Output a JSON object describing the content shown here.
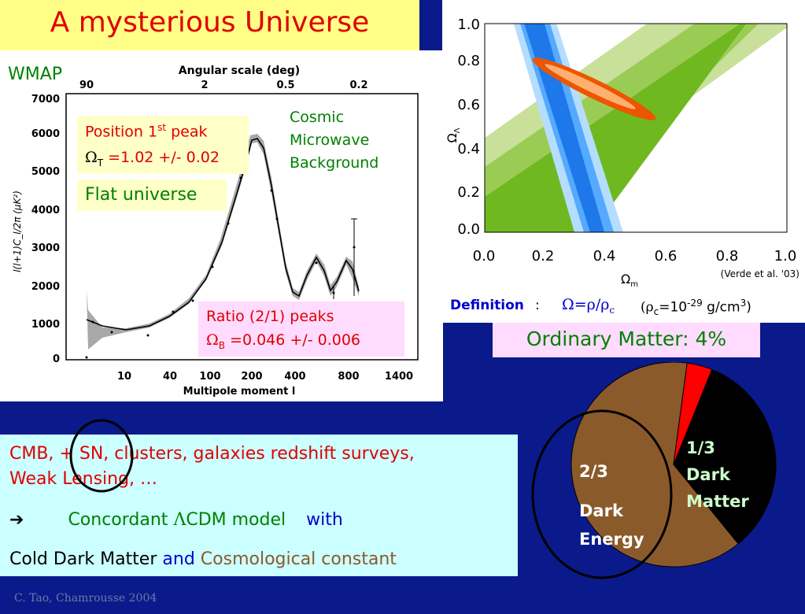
{
  "title": "A mysterious Universe",
  "colors": {
    "background": "#0a1a8a",
    "title_bg": "#ffff88",
    "title_text": "#e00000",
    "dark_energy": "#8b5a2b",
    "dark_matter": "#000000",
    "ordinary_matter": "#ff0000"
  },
  "cmb": {
    "wmap_label": "WMAP",
    "top_axis_label": "Angular scale (deg)",
    "top_ticks": [
      "90",
      "2",
      "0.5",
      "0.2"
    ],
    "y_ticks": [
      "7000",
      "6000",
      "5000",
      "4000",
      "3000",
      "2000",
      "1000",
      "0"
    ],
    "y_label": "l(l+1)C_l/2π (μK²)",
    "x_ticks": [
      "10",
      "40",
      "100",
      "200",
      "400",
      "800",
      "1400"
    ],
    "x_label": "Multipole moment l",
    "peak_box": {
      "line1": "Position 1",
      "sup": "st",
      "line1_end": " peak",
      "omega": "Ω",
      "sub": "T",
      "value": " =1.02 +/- 0.02"
    },
    "flat_label": "Flat universe",
    "cmb_label": [
      "Cosmic",
      "Microwave",
      "Background"
    ],
    "ratio_box": {
      "line1": "Ratio (2/1) peaks",
      "omega": "Ω",
      "sub": "B",
      "value": " =0.046 +/- 0.006"
    }
  },
  "omega_plot": {
    "x_ticks": [
      "0.0",
      "0.2",
      "0.4",
      "0.6",
      "0.8",
      "1.0"
    ],
    "y_ticks": [
      "1.0",
      "0.8",
      "0.6",
      "0.4",
      "0.2",
      "0.0"
    ],
    "x_label": "Ω",
    "x_label_sub": "m",
    "y_label": "Ω",
    "y_label_sub": "Λ",
    "citation": "(Verde et al. '03)"
  },
  "definition": {
    "label": "Definition",
    "colon": ":",
    "formula": "Ω=ρ/ρ",
    "formula_sub": "c",
    "paren_open": "(ρ",
    "rho_sub": "c",
    "value": "=10",
    "exp": "-29",
    "unit": " g/cm",
    "unit_exp": "3",
    "paren_close": ")"
  },
  "ordinary_matter": "Ordinary Matter: 4%",
  "pie": {
    "slices": [
      {
        "name": "Dark Energy",
        "fraction": 0.63
      },
      {
        "name": "Dark Matter",
        "fraction": 0.33
      },
      {
        "name": "Ordinary Matter",
        "fraction": 0.04
      }
    ],
    "dark_energy_label": [
      "2/3",
      "Dark",
      "Energy"
    ],
    "dark_matter_label": [
      "1/3",
      "Dark",
      "Matter"
    ]
  },
  "text_panel": {
    "line1": "CMB, + SN, clusters, galaxies redshift surveys,",
    "line2": "Weak Lensing, …",
    "arrow": "➔",
    "line3_a": "Concordant ",
    "lambda": "Λ",
    "line3_b": "CDM model",
    "line3_with": "with",
    "line4_a": "Cold Dark Matter",
    "line4_and": "and",
    "line4_b": "Cosmological constant"
  },
  "footer": "C. Tao, Chamrousse 2004"
}
